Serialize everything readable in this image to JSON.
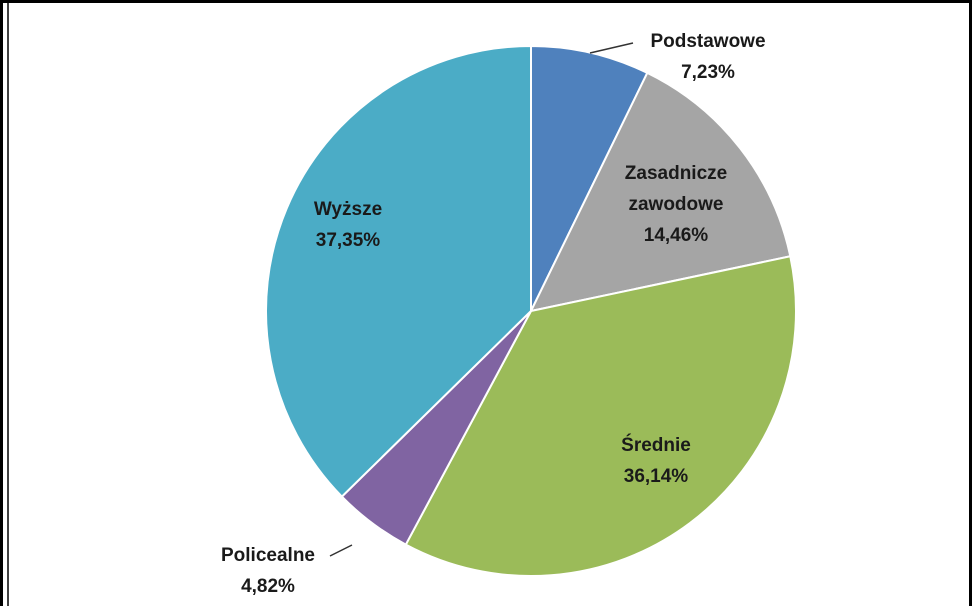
{
  "chart_data": {
    "type": "pie",
    "categories": [
      "Podstawowe",
      "Zasadnicze zawodowe",
      "Średnie",
      "Policealne",
      "Wyższe"
    ],
    "values": [
      7.23,
      14.46,
      36.14,
      4.82,
      37.35
    ],
    "value_labels": [
      "7,23%",
      "14,46%",
      "36,14%",
      "4,82%",
      "37,35%"
    ],
    "colors": [
      "#4f81bd",
      "#a5a5a5",
      "#9bbb59",
      "#8064a2",
      "#4bacc6"
    ]
  }
}
